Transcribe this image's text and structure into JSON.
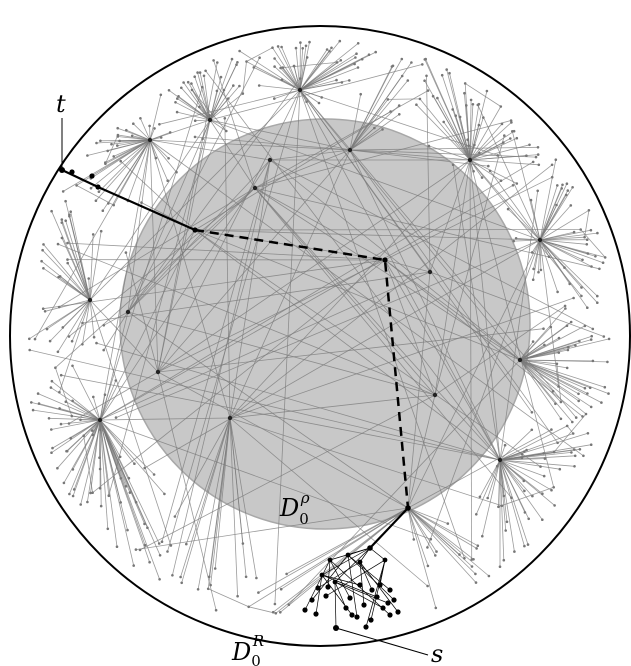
{
  "diagram": {
    "labels": {
      "t": "t",
      "s": "s",
      "inner_disk": "D",
      "inner_disk_sub": "0",
      "inner_disk_sup": "ρ",
      "outer_disk": "D",
      "outer_disk_sub": "0",
      "outer_disk_sup": "R"
    },
    "colors": {
      "outer_circle": "#000000",
      "inner_disk_fill": "#c8c8c8",
      "inner_disk_stroke": "#a8a8a8",
      "graph_edges": "#7a7a7a",
      "path": "#000000"
    },
    "path": {
      "style_inside_inner_disk": "dashed",
      "style_outside_inner_disk": "solid"
    }
  }
}
